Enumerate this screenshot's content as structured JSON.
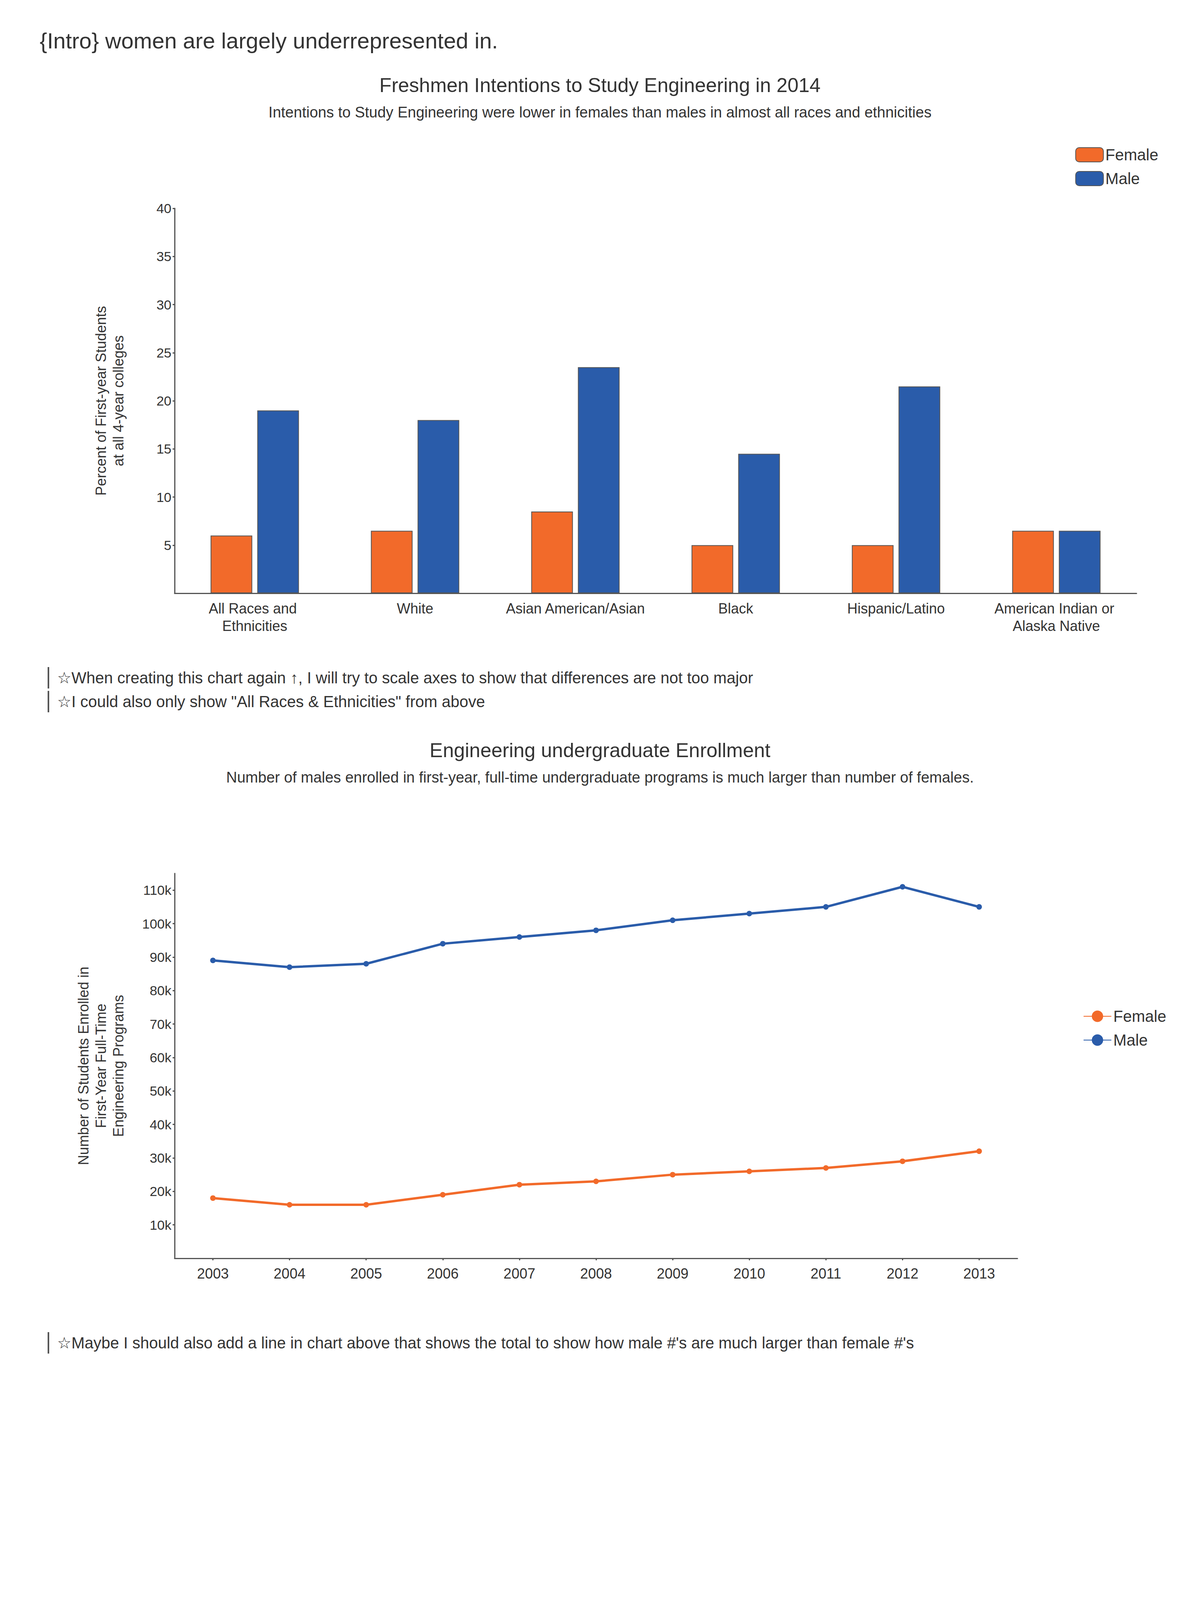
{
  "header": "{Intro} women are largely underrepresented in.",
  "chart_data": [
    {
      "type": "bar",
      "title": "Freshmen Intentions to Study Engineering in 2014",
      "subtitle": "Intentions to Study Engineering were lower in females than males in almost all races and ethnicities",
      "y_label": "Percent of First-year Students at all 4-year colleges",
      "categories": [
        "All Races and Ethnicities",
        "White",
        "Asian American/Asian",
        "Black",
        "Hispanic/Latino",
        "American Indian or Alaska Native"
      ],
      "series": [
        {
          "name": "Female",
          "color": "#f26a2a",
          "values": [
            6,
            6.5,
            8.5,
            5,
            5,
            6.5
          ]
        },
        {
          "name": "Male",
          "color": "#2a5caa",
          "values": [
            19,
            18,
            23.5,
            14.5,
            21.5,
            6.5
          ]
        }
      ],
      "ylim": [
        0,
        40
      ],
      "yticks": [
        5,
        10,
        15,
        20,
        25,
        30,
        35,
        40
      ],
      "grid": false,
      "legend": "upper right",
      "annotations": [
        "☆When creating this chart again ↑, I will try to scale axes to show that differences are not too major",
        "☆I could also only show \"All Races & Ethnicities\" from above"
      ]
    },
    {
      "type": "line",
      "title": "Engineering undergraduate Enrollment",
      "subtitle": "Number of males enrolled in first-year, full-time undergraduate programs is much larger than number of females.",
      "y_label": "Number of Students Enrolled in First-Year Full-Time Engineering Programs",
      "categories": [
        "2003",
        "2004",
        "2005",
        "2006",
        "2007",
        "2008",
        "2009",
        "2010",
        "2011",
        "2012",
        "2013"
      ],
      "series": [
        {
          "name": "Female",
          "color": "#f26a2a",
          "values": [
            18000,
            16000,
            16000,
            19000,
            22000,
            23000,
            25000,
            26000,
            27000,
            29000,
            32000
          ]
        },
        {
          "name": "Male",
          "color": "#2a5caa",
          "values": [
            89000,
            87000,
            88000,
            94000,
            96000,
            98000,
            101000,
            103000,
            105000,
            111000,
            105000
          ]
        }
      ],
      "ylim": [
        0,
        115000
      ],
      "yticks": [
        {
          "value": 10000,
          "label": "10k"
        },
        {
          "value": 20000,
          "label": "20k"
        },
        {
          "value": 30000,
          "label": "30k"
        },
        {
          "value": 40000,
          "label": "40k"
        },
        {
          "value": 50000,
          "label": "50k"
        },
        {
          "value": 60000,
          "label": "60k"
        },
        {
          "value": 70000,
          "label": "70k"
        },
        {
          "value": 80000,
          "label": "80k"
        },
        {
          "value": 90000,
          "label": "90k"
        },
        {
          "value": 100000,
          "label": "100k"
        },
        {
          "value": 110000,
          "label": "110k"
        }
      ],
      "grid": false,
      "legend": "right",
      "marker": "circle",
      "annotations": [
        "☆Maybe I should also add a line in chart above that shows the total to show how male #'s are much larger than female #'s"
      ]
    }
  ]
}
